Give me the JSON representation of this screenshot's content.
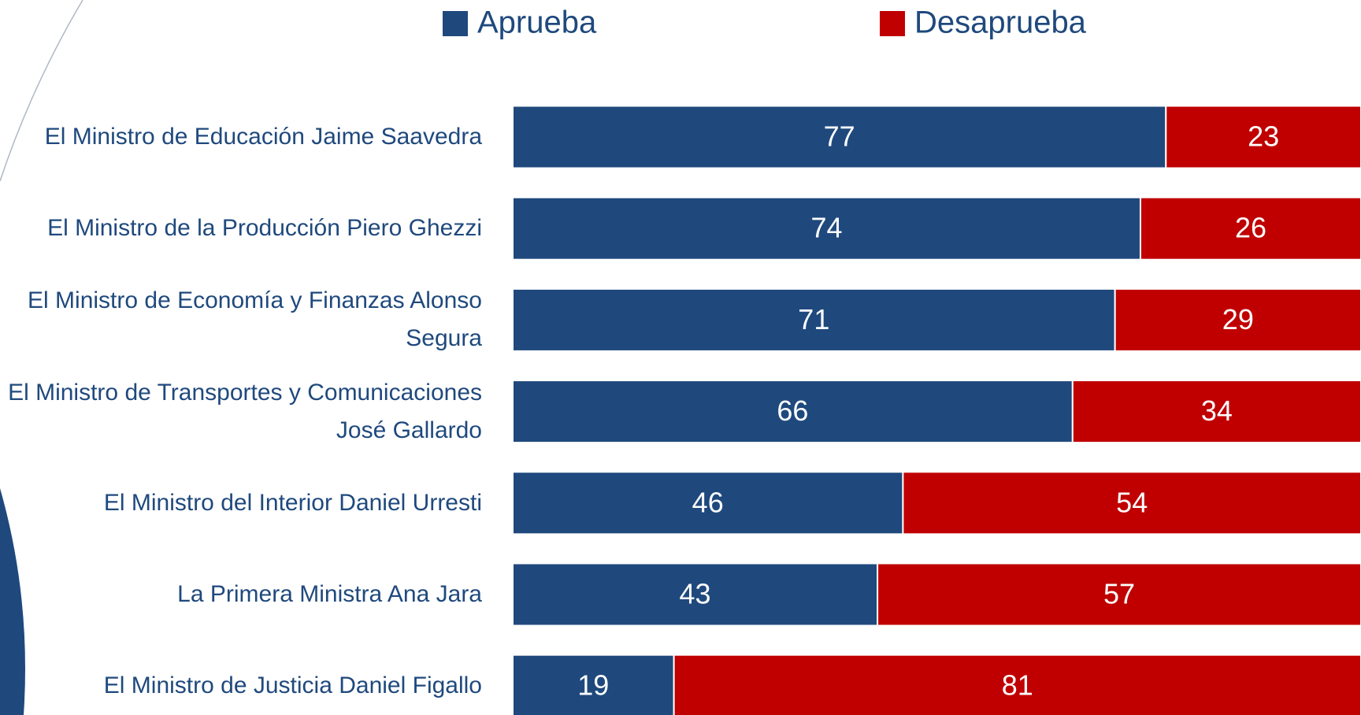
{
  "chart_data": {
    "type": "stacked_bar_horizontal",
    "categories": [
      "El Ministro de Educación Jaime Saavedra",
      "El Ministro de la Producción Piero Ghezzi",
      "El Ministro de Economía y Finanzas Alonso Segura",
      "El Ministro de Transportes y Comunicaciones José Gallardo",
      "El Ministro del Interior Daniel Urresti",
      "La Primera Ministra Ana Jara",
      "El Ministro de Justicia Daniel Figallo"
    ],
    "series": [
      {
        "name": "Aprueba",
        "color": "#1f497d",
        "values": [
          77,
          74,
          71,
          66,
          46,
          43,
          19
        ]
      },
      {
        "name": "Desaprueba",
        "color": "#c00000",
        "values": [
          23,
          26,
          29,
          34,
          54,
          57,
          81
        ]
      }
    ],
    "xlim": [
      0,
      100
    ],
    "legend": "top"
  }
}
